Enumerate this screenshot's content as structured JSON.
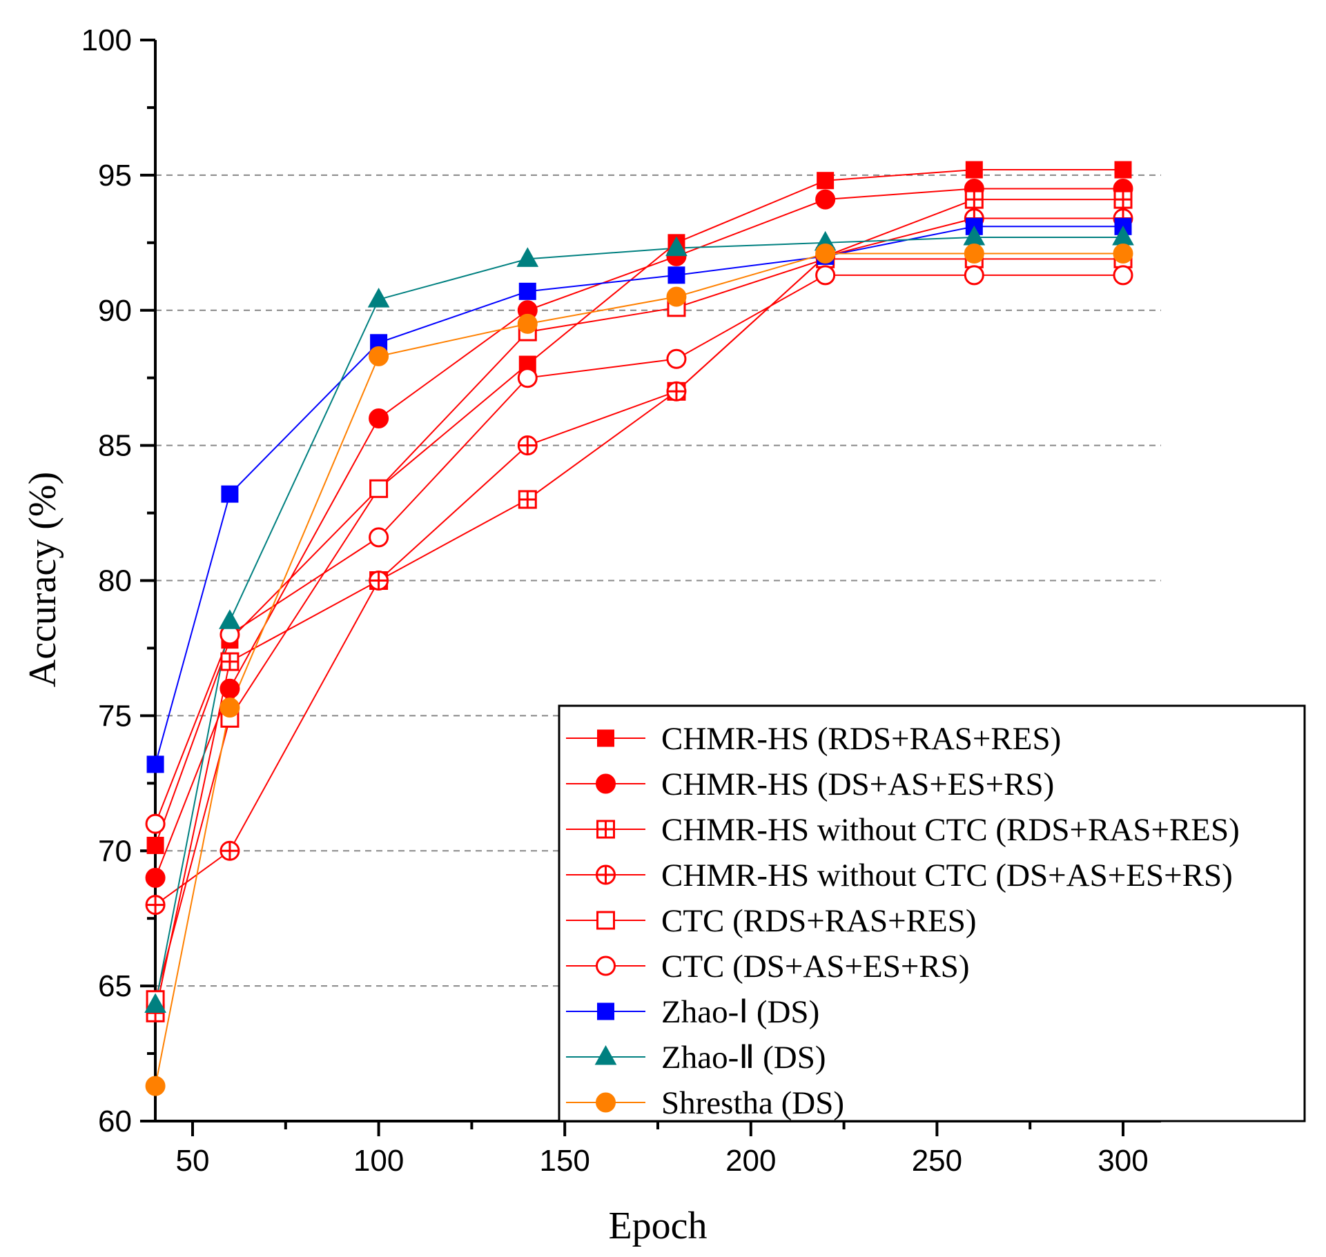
{
  "chart_data": {
    "type": "line",
    "title": "",
    "xlabel": "Epoch",
    "ylabel": "Accuracy (%)",
    "xlim": [
      40,
      310
    ],
    "ylim": [
      60,
      100
    ],
    "xticks": [
      50,
      100,
      150,
      200,
      250,
      300
    ],
    "yticks": [
      60,
      65,
      70,
      75,
      80,
      85,
      90,
      95,
      100
    ],
    "grid": "horizontal dashed",
    "legend_position": "bottom-right",
    "x": [
      40,
      60,
      100,
      140,
      180,
      220,
      260,
      300
    ],
    "series": [
      {
        "name": "CHMR-HS (RDS+RAS+RES)",
        "color": "#ff0000",
        "marker": "square-filled",
        "values": [
          70.2,
          77.8,
          83.4,
          88.0,
          92.5,
          94.8,
          95.2,
          95.2
        ]
      },
      {
        "name": "CHMR-HS (DS+AS+ES+RS)",
        "color": "#ff0000",
        "marker": "circle-filled",
        "values": [
          69.0,
          76.0,
          86.0,
          90.0,
          92.0,
          94.1,
          94.5,
          94.5
        ]
      },
      {
        "name": "CHMR-HS without CTC (RDS+RAS+RES)",
        "color": "#ff0000",
        "marker": "square-plus",
        "values": [
          64.0,
          77.0,
          80.0,
          83.0,
          87.0,
          92.0,
          94.1,
          94.1
        ]
      },
      {
        "name": "CHMR-HS without CTC (DS+AS+ES+RS)",
        "color": "#ff0000",
        "marker": "circle-plus",
        "values": [
          68.0,
          70.0,
          80.0,
          85.0,
          87.0,
          92.0,
          93.4,
          93.4
        ]
      },
      {
        "name": "CTC (RDS+RAS+RES)",
        "color": "#ff0000",
        "marker": "square-open",
        "values": [
          64.5,
          74.9,
          83.4,
          89.2,
          90.1,
          91.9,
          91.9,
          91.9
        ]
      },
      {
        "name": "CTC (DS+AS+ES+RS)",
        "color": "#ff0000",
        "marker": "circle-open",
        "values": [
          71.0,
          78.0,
          81.6,
          87.5,
          88.2,
          91.3,
          91.3,
          91.3
        ]
      },
      {
        "name": "Zhao-Ⅰ (DS)",
        "color": "#0000ff",
        "marker": "square-filled",
        "values": [
          73.2,
          83.2,
          88.8,
          90.7,
          91.3,
          92.0,
          93.1,
          93.1
        ]
      },
      {
        "name": "Zhao-Ⅱ (DS)",
        "color": "#008080",
        "marker": "triangle-filled",
        "values": [
          64.3,
          78.5,
          90.4,
          91.9,
          92.3,
          92.5,
          92.7,
          92.7
        ]
      },
      {
        "name": "Shrestha (DS)",
        "color": "#ff8000",
        "marker": "circle-filled",
        "values": [
          61.3,
          75.3,
          88.3,
          89.5,
          90.5,
          92.1,
          92.1,
          92.1
        ]
      }
    ]
  }
}
